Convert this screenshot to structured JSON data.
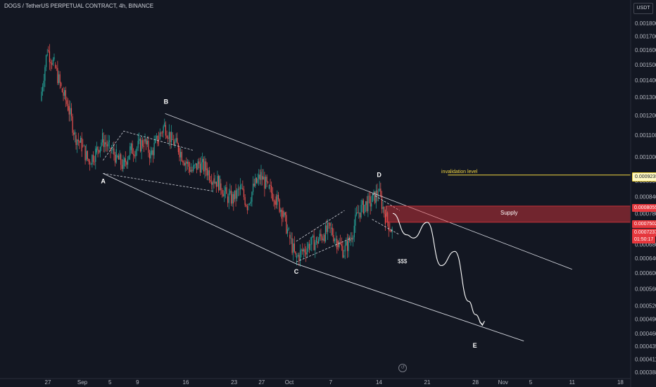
{
  "header": {
    "symbol_title": "DOGS / TetherUS PERPETUAL CONTRACT, 4h, BINANCE"
  },
  "currency": "USDT",
  "colors": {
    "up": "#26a69a",
    "down": "#ef5350",
    "invalidation": "#f2d640",
    "supply": "#e5373d",
    "background": "#131722"
  },
  "annotations": {
    "invalidation_label": "invalidation level",
    "supply_label": "Supply",
    "liquidity_label": "$$$",
    "wave_labels": [
      "A",
      "B",
      "C",
      "D",
      "E"
    ]
  },
  "price_badges": {
    "invalidation": "0.0009235",
    "supply_top": "0.0008055",
    "supply_bottom": "0.0007502",
    "last_price": "0.0007237",
    "countdown": "01:50:17"
  },
  "chart_data": {
    "type": "candlestick",
    "title": "DOGS / TetherUS PERPETUAL CONTRACT, 4h, BINANCE",
    "y_axis": {
      "scale": "log",
      "ylim": [
        0.000388,
        0.0018
      ],
      "tick_labels": [
        "0.0018000",
        "0.0017000",
        "0.0016000",
        "0.0015000",
        "0.0014000",
        "0.0013000",
        "0.0012000",
        "0.0011000",
        "0.0010000",
        "0.0009000",
        "0.0008400",
        "0.0007800",
        "0.0007400",
        "0.0006800",
        "0.0006400",
        "0.0006000",
        "0.0005600",
        "0.0005200",
        "0.0004900",
        "0.0004600",
        "0.0004350",
        "0.0004110",
        "0.0003880"
      ],
      "tick_values": [
        0.0018,
        0.0017,
        0.0016,
        0.0015,
        0.0014,
        0.0013,
        0.0012,
        0.0011,
        0.001,
        0.0009,
        0.00084,
        0.00078,
        0.00074,
        0.00068,
        0.00064,
        0.0006,
        0.00056,
        0.00052,
        0.00049,
        0.00046,
        0.000435,
        0.000411,
        0.000388
      ]
    },
    "x_axis": {
      "tick_labels": [
        "27",
        "Sep",
        "5",
        "9",
        "16",
        "23",
        "27",
        "Oct",
        "7",
        "14",
        "21",
        "28",
        "Nov",
        "5",
        "11",
        "18"
      ],
      "tick_dates": [
        "2024-08-27",
        "2024-09-01",
        "2024-09-05",
        "2024-09-09",
        "2024-09-16",
        "2024-09-23",
        "2024-09-27",
        "2024-10-01",
        "2024-10-07",
        "2024-10-14",
        "2024-10-21",
        "2024-10-28",
        "2024-11-01",
        "2024-11-05",
        "2024-11-11",
        "2024-11-18"
      ]
    },
    "price_path": [
      [
        "2024-08-26",
        0.00128
      ],
      [
        "2024-08-27",
        0.0016
      ],
      [
        "2024-08-28",
        0.0015
      ],
      [
        "2024-08-29",
        0.00135
      ],
      [
        "2024-08-30",
        0.00125
      ],
      [
        "2024-08-31",
        0.0011
      ],
      [
        "2024-09-01",
        0.00105
      ],
      [
        "2024-09-02",
        0.00098
      ],
      [
        "2024-09-03",
        0.00102
      ],
      [
        "2024-09-04",
        0.00108
      ],
      [
        "2024-09-05",
        0.00104
      ],
      [
        "2024-09-06",
        0.001
      ],
      [
        "2024-09-07",
        0.00096
      ],
      [
        "2024-09-08",
        0.00103
      ],
      [
        "2024-09-09",
        0.00104
      ],
      [
        "2024-09-10",
        0.00107
      ],
      [
        "2024-09-11",
        0.00101
      ],
      [
        "2024-09-12",
        0.00108
      ],
      [
        "2024-09-13",
        0.00115
      ],
      [
        "2024-09-14",
        0.00108
      ],
      [
        "2024-09-15",
        0.00104
      ],
      [
        "2024-09-16",
        0.00098
      ],
      [
        "2024-09-17",
        0.00094
      ],
      [
        "2024-09-18",
        0.00097
      ],
      [
        "2024-09-19",
        0.00095
      ],
      [
        "2024-09-20",
        0.00091
      ],
      [
        "2024-09-21",
        0.00089
      ],
      [
        "2024-09-22",
        0.00084
      ],
      [
        "2024-09-23",
        0.00083
      ],
      [
        "2024-09-24",
        0.00087
      ],
      [
        "2024-09-25",
        0.00081
      ],
      [
        "2024-09-26",
        0.00088
      ],
      [
        "2024-09-27",
        0.00092
      ],
      [
        "2024-09-28",
        0.00087
      ],
      [
        "2024-09-29",
        0.00084
      ],
      [
        "2024-09-30",
        0.00079
      ],
      [
        "2024-10-01",
        0.00071
      ],
      [
        "2024-10-02",
        0.00064
      ],
      [
        "2024-10-03",
        0.00066
      ],
      [
        "2024-10-04",
        0.00068
      ],
      [
        "2024-10-05",
        0.00069
      ],
      [
        "2024-10-06",
        0.00071
      ],
      [
        "2024-10-07",
        0.00073
      ],
      [
        "2024-10-08",
        0.00069
      ],
      [
        "2024-10-09",
        0.00066
      ],
      [
        "2024-10-10",
        0.0007
      ],
      [
        "2024-10-11",
        0.00078
      ],
      [
        "2024-10-12",
        0.00081
      ],
      [
        "2024-10-13",
        0.00082
      ],
      [
        "2024-10-14",
        0.00086
      ],
      [
        "2024-10-15",
        0.00077
      ],
      [
        "2024-10-16",
        0.00072
      ]
    ],
    "zones": {
      "supply": {
        "label": "Supply",
        "from": "2024-10-15",
        "price_top": 0.0008055,
        "price_bottom": 0.0007502
      },
      "invalidation": {
        "label": "invalidation level",
        "from": "2024-10-24",
        "price": 0.0009235
      }
    },
    "wave_points": [
      {
        "label": "A",
        "date": "2024-09-04",
        "price": 0.00093
      },
      {
        "label": "B",
        "date": "2024-09-13",
        "price": 0.00121
      },
      {
        "label": "C",
        "date": "2024-10-02",
        "price": 0.000625
      },
      {
        "label": "D",
        "date": "2024-10-14",
        "price": 0.00089
      },
      {
        "label": "E",
        "date": "2024-10-28",
        "price": 0.00046
      }
    ],
    "projection": [
      [
        "2024-10-16",
        0.00078
      ],
      [
        "2024-10-18",
        0.00071
      ],
      [
        "2024-10-19",
        0.0007
      ],
      [
        "2024-10-21",
        0.00075
      ],
      [
        "2024-10-23",
        0.00062
      ],
      [
        "2024-10-25",
        0.00066
      ],
      [
        "2024-10-27",
        0.00053
      ],
      [
        "2024-10-28",
        0.0005
      ],
      [
        "2024-10-29",
        0.00048
      ]
    ],
    "channel": {
      "upper": [
        [
          "2024-09-13",
          0.00121
        ],
        [
          "2024-11-11",
          0.00061
        ]
      ],
      "lower": [
        [
          "2024-09-04",
          0.00093
        ],
        [
          "2024-10-02",
          0.000625
        ],
        [
          "2024-11-04",
          0.000445
        ]
      ]
    },
    "grid": false
  }
}
